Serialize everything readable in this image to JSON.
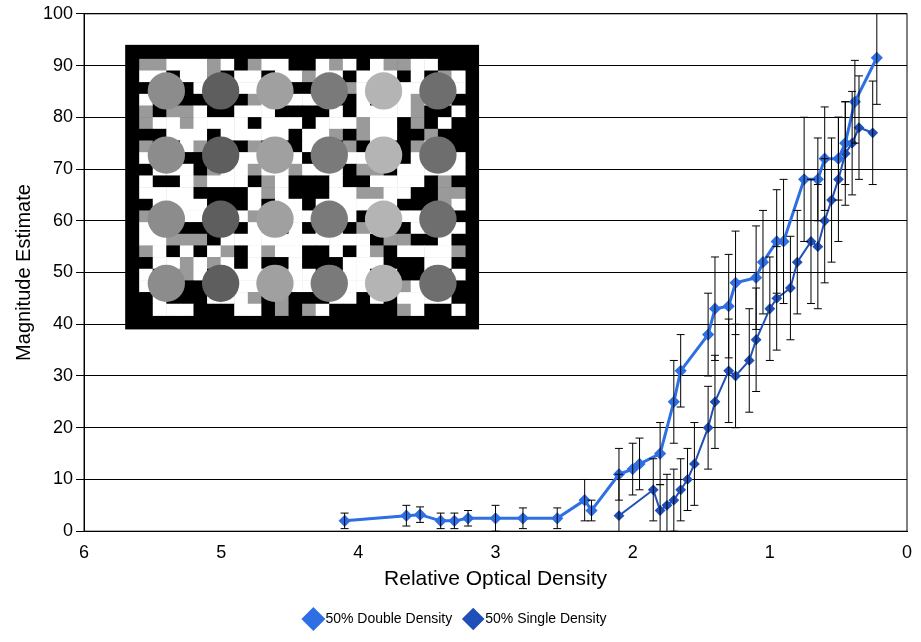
{
  "chart_data": {
    "type": "line",
    "x_label": "Relative Optical Density",
    "y_label": "Magnitude Estimate",
    "xlim": [
      6,
      0
    ],
    "xticks": [
      6,
      5,
      4,
      3,
      2,
      1,
      0
    ],
    "ylim": [
      0,
      100
    ],
    "yticks": [
      0,
      10,
      20,
      30,
      40,
      50,
      60,
      70,
      80,
      90,
      100
    ],
    "grid": "y",
    "legend": "bottom",
    "series": [
      {
        "name": "50% Double Density",
        "color": "#2f6fe4",
        "marker": "diamond",
        "line_style": "solid",
        "x": [
          4.1,
          3.65,
          3.55,
          3.4,
          3.3,
          3.2,
          3.0,
          2.8,
          2.55,
          2.35,
          2.3,
          2.1,
          2.0,
          1.95,
          1.8,
          1.7,
          1.65,
          1.45,
          1.4,
          1.3,
          1.25,
          1.1,
          1.05,
          0.95,
          0.9,
          0.75,
          0.65,
          0.6,
          0.5,
          0.45,
          0.38,
          0.22
        ],
        "values": [
          2,
          3,
          3.2,
          2,
          2,
          2.5,
          2.5,
          2.5,
          2.5,
          6,
          4,
          11,
          12,
          13,
          15,
          25,
          31,
          38,
          43,
          43.5,
          48,
          49,
          52,
          56,
          56,
          68,
          68,
          72,
          72,
          75,
          83,
          91.5
        ],
        "errors": [
          1.5,
          2,
          1.5,
          1.5,
          1.5,
          1.5,
          2.5,
          2,
          2,
          4,
          2,
          5,
          5,
          5,
          6,
          8,
          7,
          8,
          10,
          10,
          10,
          10,
          10,
          10,
          12,
          12,
          8,
          10,
          8,
          8,
          8,
          9
        ]
      },
      {
        "name": "50% Single Density",
        "color": "#1f4fb8",
        "marker": "diamond",
        "line_style": "solid",
        "x": [
          2.1,
          1.85,
          1.8,
          1.75,
          1.7,
          1.65,
          1.6,
          1.55,
          1.45,
          1.4,
          1.3,
          1.25,
          1.15,
          1.1,
          1.0,
          0.95,
          0.85,
          0.8,
          0.7,
          0.65,
          0.6,
          0.55,
          0.5,
          0.45,
          0.4,
          0.35,
          0.25
        ],
        "values": [
          3,
          8,
          4,
          5,
          6,
          8,
          10,
          13,
          20,
          25,
          31,
          30,
          33,
          37,
          43,
          45,
          47,
          52,
          56,
          55,
          60,
          64,
          68,
          73,
          75,
          78,
          77
        ],
        "errors": [
          8,
          6,
          5,
          6,
          6,
          6,
          6,
          8,
          8,
          9,
          10,
          10,
          10,
          10,
          10,
          10,
          10,
          10,
          12,
          12,
          12,
          12,
          12,
          10,
          10,
          10,
          10
        ]
      }
    ]
  }
}
